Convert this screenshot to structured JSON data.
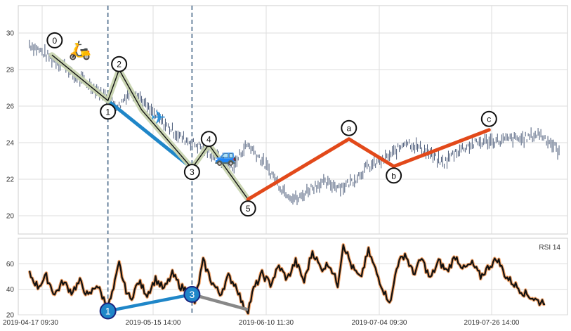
{
  "chart_data": [
    {
      "type": "line",
      "panel": "price",
      "title": "",
      "ylim": [
        19,
        31.5
      ],
      "yticks": [
        20,
        22,
        24,
        26,
        28,
        30
      ],
      "grid": true,
      "x_dates": [
        "2019-04-17 09:30",
        "2019-05-15 14:00",
        "2019-06-10 11:30",
        "2019-07-04 09:30",
        "2019-07-26 14:00"
      ],
      "price_series": {
        "anchors": [
          [
            -8,
            29.4
          ],
          [
            -4,
            29.0
          ],
          [
            0,
            28.6
          ],
          [
            4,
            28.3
          ],
          [
            8,
            27.6
          ],
          [
            12,
            27.3
          ],
          [
            16,
            26.9
          ],
          [
            20,
            26.4
          ],
          [
            22,
            26.2
          ],
          [
            24,
            26.0
          ],
          [
            27,
            26.7
          ],
          [
            30,
            26.8
          ],
          [
            34,
            25.9
          ],
          [
            38,
            25.3
          ],
          [
            42,
            24.8
          ],
          [
            46,
            24.3
          ],
          [
            50,
            24.0
          ],
          [
            54,
            23.7
          ],
          [
            58,
            23.3
          ],
          [
            62,
            22.9
          ],
          [
            65,
            22.7
          ],
          [
            68,
            23.6
          ],
          [
            70,
            23.9
          ],
          [
            74,
            23.2
          ],
          [
            78,
            22.4
          ],
          [
            82,
            21.5
          ],
          [
            86,
            21.0
          ],
          [
            88,
            20.9
          ],
          [
            92,
            21.5
          ],
          [
            96,
            21.8
          ],
          [
            100,
            21.7
          ],
          [
            104,
            21.6
          ],
          [
            108,
            22.0
          ],
          [
            112,
            22.6
          ],
          [
            116,
            22.9
          ],
          [
            120,
            23.2
          ],
          [
            124,
            23.7
          ],
          [
            126,
            24.1
          ],
          [
            130,
            23.8
          ],
          [
            134,
            23.5
          ],
          [
            138,
            23.0
          ],
          [
            140,
            22.9
          ],
          [
            144,
            23.5
          ],
          [
            148,
            23.8
          ],
          [
            152,
            24.0
          ],
          [
            156,
            24.1
          ],
          [
            160,
            24.1
          ],
          [
            164,
            24.2
          ],
          [
            168,
            24.2
          ],
          [
            172,
            24.4
          ],
          [
            174,
            24.5
          ],
          [
            178,
            24.0
          ],
          [
            181,
            23.5
          ]
        ]
      },
      "wave_lines": [
        {
          "name": "wave-1",
          "points": [
            [
              0,
              28.8
            ],
            [
              20,
              26.3
            ],
            [
              24,
              28.0
            ],
            [
              32,
              25.8
            ],
            [
              50,
              22.6
            ],
            [
              56,
              23.9
            ],
            [
              70,
              20.9
            ]
          ]
        },
        {
          "name": "wave-2",
          "points": [
            [
              20,
              26.3
            ],
            [
              50,
              22.6
            ]
          ]
        },
        {
          "name": "wave-3",
          "points": [
            [
              70,
              20.9
            ],
            [
              106,
              24.2
            ],
            [
              122,
              22.7
            ],
            [
              156,
              24.7
            ]
          ]
        }
      ],
      "wave_labels": [
        {
          "text": "0",
          "x": 1,
          "y": 29.6
        },
        {
          "text": "1",
          "x": 20,
          "y": 25.7
        },
        {
          "text": "2",
          "x": 24,
          "y": 28.3
        },
        {
          "text": "3",
          "x": 50,
          "y": 22.4
        },
        {
          "text": "4",
          "x": 56,
          "y": 24.2
        },
        {
          "text": "5",
          "x": 70,
          "y": 20.4
        },
        {
          "text": "a",
          "x": 106,
          "y": 24.8
        },
        {
          "text": "b",
          "x": 122,
          "y": 22.2
        },
        {
          "text": "c",
          "x": 156,
          "y": 25.3
        }
      ],
      "vlines_x": [
        20,
        50
      ],
      "icons": [
        {
          "name": "scooter-icon",
          "glyph": "🛵",
          "x": 10,
          "y": 29.0
        },
        {
          "name": "airplane-icon",
          "glyph": "✈",
          "x": 38,
          "y": 25.3
        },
        {
          "name": "car-icon",
          "glyph": "🚙",
          "x": 62,
          "y": 23.2
        }
      ]
    },
    {
      "type": "line",
      "panel": "rsi",
      "legend_text": "RSI 14",
      "legend_placement": "top-right",
      "ylim": [
        20,
        80
      ],
      "yticks": [
        20,
        40,
        60
      ],
      "grid": true,
      "rsi_series": {
        "anchors": [
          [
            -8,
            52
          ],
          [
            -5,
            42
          ],
          [
            -2,
            50
          ],
          [
            1,
            36
          ],
          [
            4,
            46
          ],
          [
            7,
            38
          ],
          [
            10,
            46
          ],
          [
            13,
            34
          ],
          [
            16,
            44
          ],
          [
            19,
            30
          ],
          [
            20,
            26
          ],
          [
            22,
            40
          ],
          [
            24,
            60
          ],
          [
            26,
            42
          ],
          [
            28,
            32
          ],
          [
            31,
            46
          ],
          [
            34,
            36
          ],
          [
            37,
            48
          ],
          [
            40,
            40
          ],
          [
            43,
            52
          ],
          [
            46,
            42
          ],
          [
            49,
            38
          ],
          [
            51,
            30
          ],
          [
            54,
            62
          ],
          [
            57,
            46
          ],
          [
            60,
            36
          ],
          [
            63,
            50
          ],
          [
            66,
            42
          ],
          [
            68,
            28
          ],
          [
            70,
            24
          ],
          [
            72,
            40
          ],
          [
            75,
            52
          ],
          [
            78,
            44
          ],
          [
            81,
            58
          ],
          [
            84,
            48
          ],
          [
            87,
            62
          ],
          [
            90,
            46
          ],
          [
            93,
            70
          ],
          [
            96,
            56
          ],
          [
            99,
            60
          ],
          [
            102,
            44
          ],
          [
            104,
            76
          ],
          [
            107,
            58
          ],
          [
            110,
            48
          ],
          [
            113,
            70
          ],
          [
            116,
            52
          ],
          [
            119,
            36
          ],
          [
            121,
            30
          ],
          [
            123,
            58
          ],
          [
            126,
            68
          ],
          [
            129,
            52
          ],
          [
            132,
            64
          ],
          [
            135,
            48
          ],
          [
            138,
            62
          ],
          [
            141,
            54
          ],
          [
            144,
            66
          ],
          [
            147,
            56
          ],
          [
            150,
            60
          ],
          [
            153,
            50
          ],
          [
            156,
            58
          ],
          [
            159,
            64
          ],
          [
            162,
            50
          ],
          [
            165,
            44
          ],
          [
            168,
            38
          ],
          [
            171,
            34
          ],
          [
            174,
            30
          ],
          [
            176,
            31
          ]
        ]
      },
      "rsi_lines": [
        {
          "name": "rsi-line-blue",
          "points": [
            [
              20,
              23
            ],
            [
              50,
              36
            ]
          ]
        },
        {
          "name": "rsi-line-gray",
          "points": [
            [
              50,
              36
            ],
            [
              70,
              24
            ]
          ]
        }
      ],
      "rsi_markers": [
        {
          "text": "1",
          "x": 20,
          "y": 23
        },
        {
          "text": "3",
          "x": 50,
          "y": 36
        }
      ]
    }
  ]
}
